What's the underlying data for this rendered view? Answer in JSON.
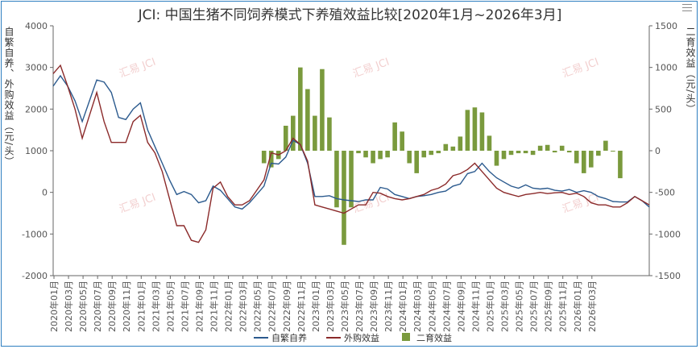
{
  "chart_data": {
    "type": "bar+line",
    "title": "JCI: 中国生猪不同饲养模式下养殖效益比较[2020年1月~2026年3月]",
    "ylabel_left": "自繁自养、外购效益（元/头）",
    "ylabel_right": "二育效益（元/头）",
    "ylim_left": [
      -2000,
      4000
    ],
    "ylim_right": [
      -1500,
      1500
    ],
    "left_ticks": [
      "4000",
      "3000",
      "2000",
      "1000",
      "0",
      "-1000",
      "-2000"
    ],
    "right_ticks": [
      "1500",
      "1000",
      "500",
      "0",
      "-500",
      "-1000",
      "-1500"
    ],
    "x_labels": [
      "2020年01月",
      "2020年03月",
      "2020年05月",
      "2020年07月",
      "2020年09月",
      "2020年11月",
      "2021年01月",
      "2021年03月",
      "2021年05月",
      "2021年07月",
      "2021年09月",
      "2021年11月",
      "2022年01月",
      "2022年03月",
      "2022年05月",
      "2022年07月",
      "2022年09月",
      "2022年11月",
      "2023年01月",
      "2023年03月",
      "2023年05月",
      "2023年07月",
      "2023年09月",
      "2023年11月",
      "2024年01月",
      "2024年03月",
      "2024年05月",
      "2024年07月",
      "2024年09月",
      "2024年11月",
      "2025年01月",
      "2025年03月",
      "2025年05月",
      "2025年07月",
      "2025年09月",
      "2025年11月",
      "2026年01月",
      "2026年03月"
    ],
    "watermark": "汇易 JCI",
    "series": [
      {
        "name": "自繁自养",
        "axis": "left",
        "color": "#2b5a8e",
        "values": [
          2550,
          2800,
          2550,
          2200,
          1700,
          2200,
          2700,
          2650,
          2400,
          1800,
          1750,
          2000,
          2150,
          1500,
          1100,
          700,
          300,
          -50,
          20,
          -50,
          -250,
          -200,
          150,
          50,
          -150,
          -350,
          -400,
          -250,
          -50,
          150,
          700,
          680,
          850,
          1250,
          1150,
          700,
          -100,
          -100,
          -80,
          -150,
          -180,
          -200,
          -220,
          -180,
          -180,
          120,
          80,
          -50,
          -100,
          -150,
          -100,
          -80,
          -50,
          0,
          30,
          150,
          200,
          450,
          500,
          700,
          500,
          350,
          250,
          150,
          100,
          180,
          100,
          80,
          100,
          50,
          30,
          70,
          0,
          40,
          0,
          -100,
          -150,
          -220,
          -230,
          -230,
          -100,
          -200,
          -350
        ]
      },
      {
        "name": "外购效益",
        "axis": "left",
        "color": "#8b2a2a",
        "values": [
          2850,
          3050,
          2550,
          2000,
          1300,
          1850,
          2400,
          1700,
          1200,
          1200,
          1200,
          1700,
          1850,
          1200,
          950,
          500,
          -150,
          -800,
          -800,
          -1150,
          -1200,
          -900,
          100,
          250,
          -100,
          -300,
          -300,
          -200,
          50,
          300,
          950,
          900,
          1000,
          1300,
          1150,
          750,
          -300,
          -350,
          -400,
          -450,
          -500,
          -400,
          -300,
          -300,
          0,
          -20,
          -100,
          -150,
          -180,
          -150,
          -100,
          -50,
          50,
          100,
          200,
          400,
          450,
          550,
          700,
          500,
          300,
          100,
          0,
          -50,
          -100,
          -50,
          -30,
          0,
          -30,
          -10,
          0,
          -50,
          -20,
          -100,
          -250,
          -300,
          -300,
          -350,
          -350,
          -250,
          -100,
          -200,
          -300
        ]
      },
      {
        "name": "二育效益",
        "axis": "right",
        "type": "bar",
        "color": "#7a9a3d",
        "bars": [
          {
            "index": 29,
            "value": -150
          },
          {
            "index": 30,
            "value": -200
          },
          {
            "index": 31,
            "value": -100
          },
          {
            "index": 32,
            "value": 300
          },
          {
            "index": 33,
            "value": 420
          },
          {
            "index": 34,
            "value": 1000
          },
          {
            "index": 35,
            "value": 740
          },
          {
            "index": 36,
            "value": 420
          },
          {
            "index": 37,
            "value": 980
          },
          {
            "index": 38,
            "value": 400
          },
          {
            "index": 39,
            "value": -680
          },
          {
            "index": 40,
            "value": -1130
          },
          {
            "index": 41,
            "value": -680
          },
          {
            "index": 42,
            "value": -30
          },
          {
            "index": 43,
            "value": -80
          },
          {
            "index": 44,
            "value": -150
          },
          {
            "index": 45,
            "value": -100
          },
          {
            "index": 46,
            "value": -80
          },
          {
            "index": 47,
            "value": 340
          },
          {
            "index": 48,
            "value": 230
          },
          {
            "index": 49,
            "value": -150
          },
          {
            "index": 50,
            "value": -270
          },
          {
            "index": 51,
            "value": -80
          },
          {
            "index": 52,
            "value": -50
          },
          {
            "index": 53,
            "value": -30
          },
          {
            "index": 54,
            "value": 80
          },
          {
            "index": 55,
            "value": 50
          },
          {
            "index": 56,
            "value": 170
          },
          {
            "index": 57,
            "value": 490
          },
          {
            "index": 58,
            "value": 520
          },
          {
            "index": 59,
            "value": 460
          },
          {
            "index": 60,
            "value": 180
          },
          {
            "index": 61,
            "value": -180
          },
          {
            "index": 62,
            "value": -100
          },
          {
            "index": 63,
            "value": -50
          },
          {
            "index": 64,
            "value": -30
          },
          {
            "index": 65,
            "value": -30
          },
          {
            "index": 66,
            "value": -50
          },
          {
            "index": 67,
            "value": 60
          },
          {
            "index": 68,
            "value": 70
          },
          {
            "index": 69,
            "value": -20
          },
          {
            "index": 70,
            "value": 60
          },
          {
            "index": 71,
            "value": -20
          },
          {
            "index": 72,
            "value": -150
          },
          {
            "index": 73,
            "value": -270
          },
          {
            "index": 74,
            "value": -200
          },
          {
            "index": 75,
            "value": -60
          },
          {
            "index": 76,
            "value": 120
          },
          {
            "index": 77,
            "value": -10
          },
          {
            "index": 78,
            "value": -330
          }
        ]
      }
    ],
    "legend": [
      "自繁自养",
      "外购效益",
      "二育效益"
    ],
    "legend_position": "bottom-center"
  }
}
